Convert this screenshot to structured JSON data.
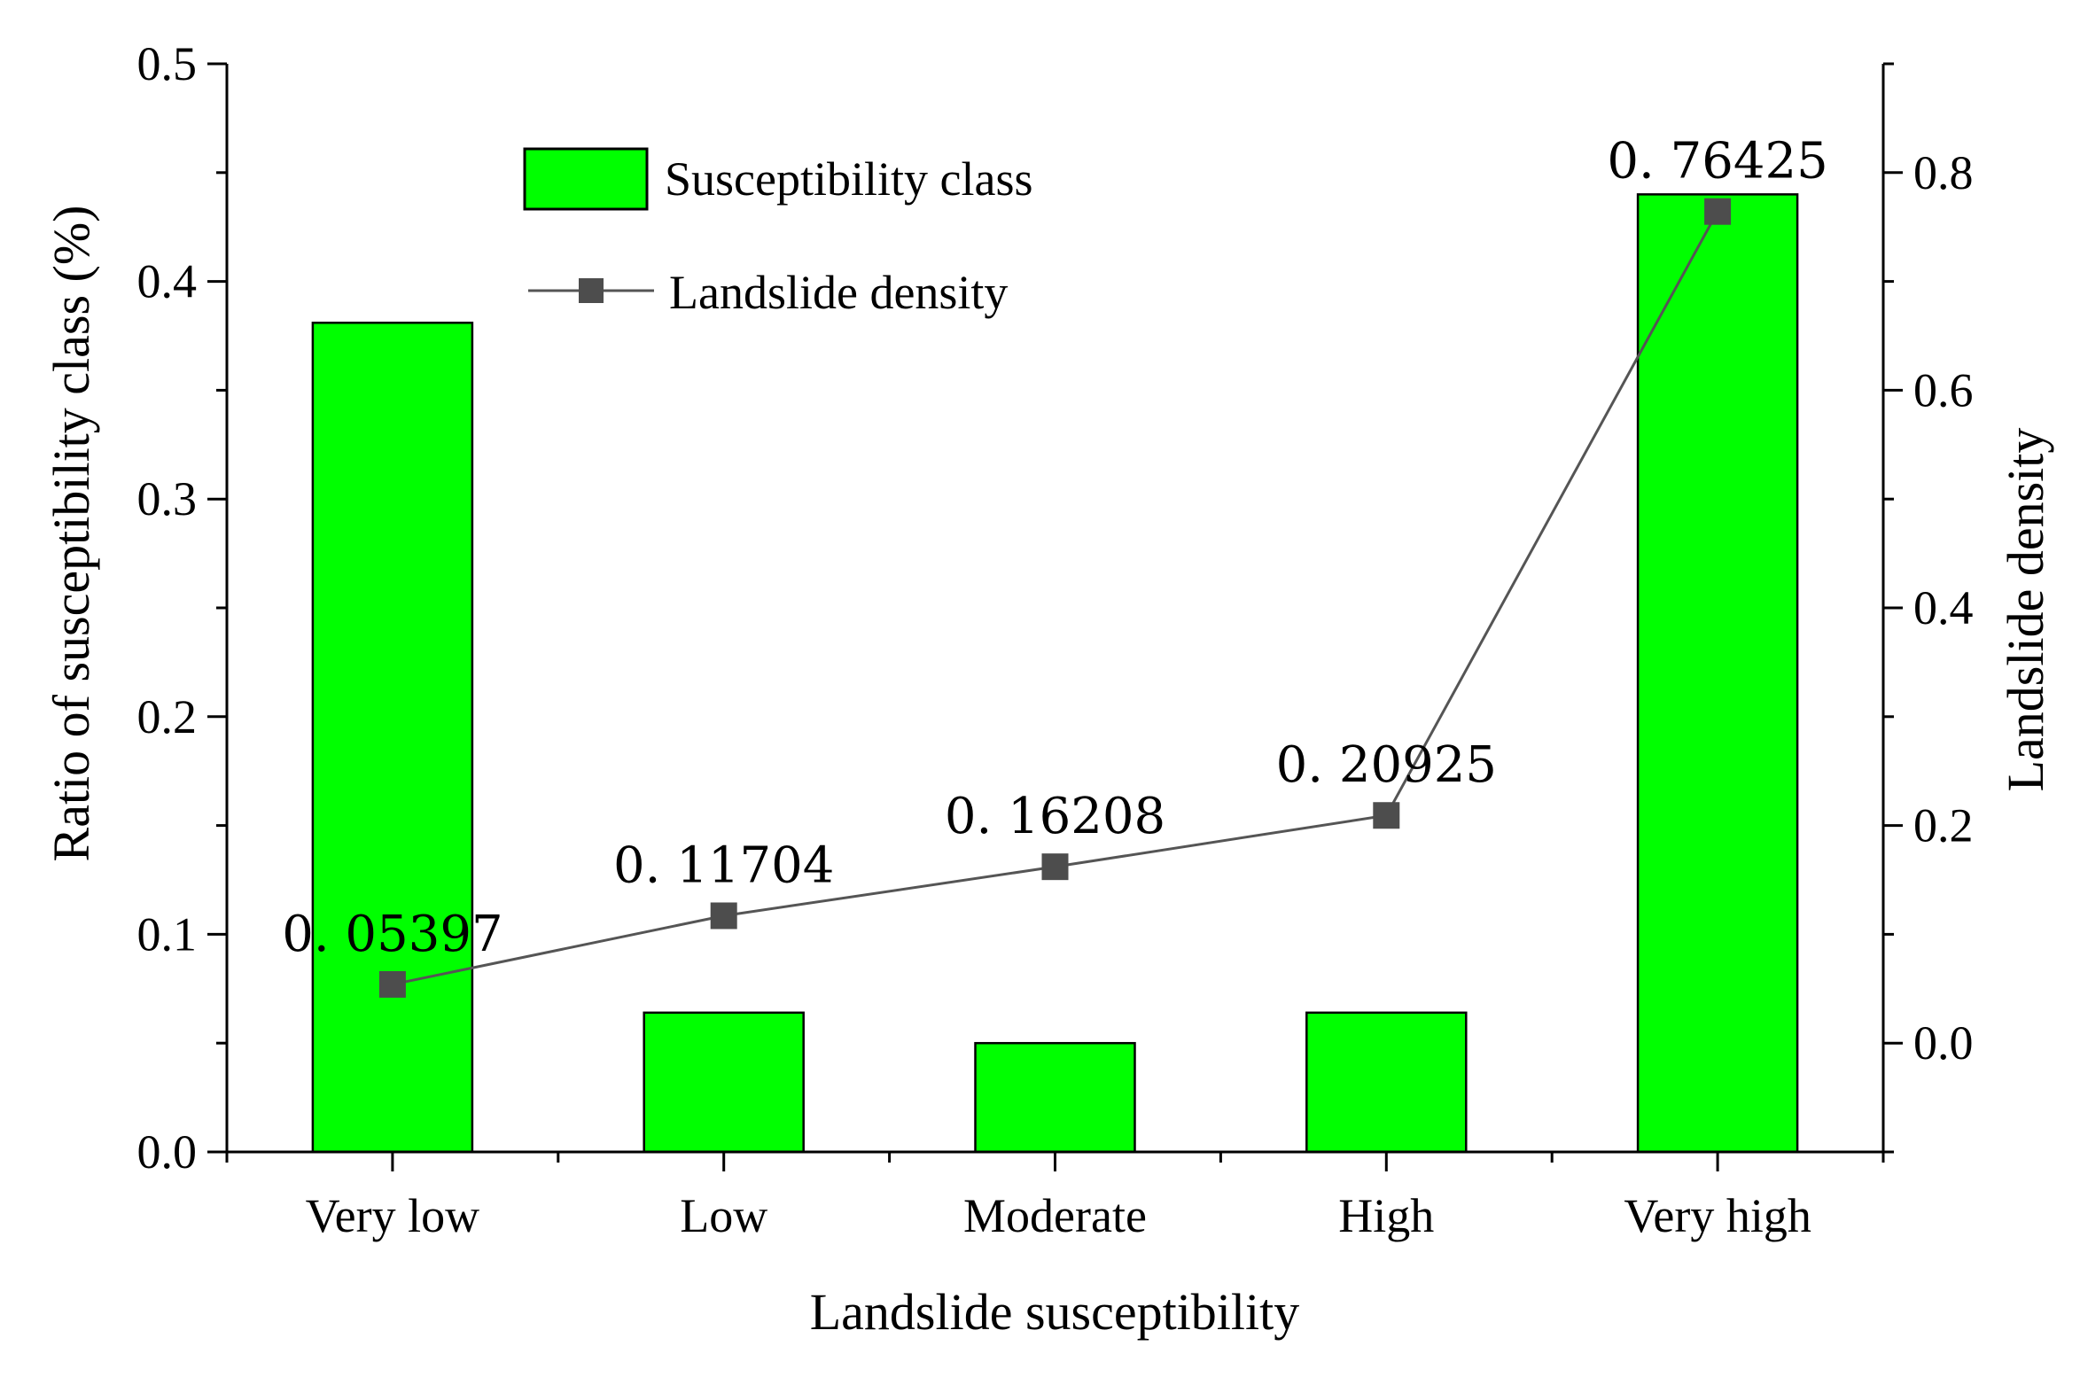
{
  "chart_data": {
    "type": "bar+line",
    "categories": [
      "Very low",
      "Low",
      "Moderate",
      "High",
      "Very high"
    ],
    "series": [
      {
        "name": "Susceptibility class",
        "kind": "bar",
        "axis": "left",
        "color": "#00ff00",
        "values": [
          0.381,
          0.064,
          0.05,
          0.064,
          0.44
        ]
      },
      {
        "name": "Landslide density",
        "kind": "line",
        "axis": "right",
        "color": "#555555",
        "values": [
          0.05397,
          0.11704,
          0.16208,
          0.20925,
          0.76425
        ],
        "labels": [
          "0. 05397",
          "0. 11704",
          "0. 16208",
          "0. 20925",
          "0. 76425"
        ]
      }
    ],
    "xlabel": "Landslide susceptibility",
    "ylabel": "Ratio of susceptibility class (%)",
    "y2label": "Landslide density",
    "ylim": [
      0,
      0.5
    ],
    "y2lim": [
      -0.1,
      0.9
    ],
    "yticks": [
      "0.0",
      "0.1",
      "0.2",
      "0.3",
      "0.4",
      "0.5"
    ],
    "y2ticks": [
      "0.0",
      "0.2",
      "0.4",
      "0.6",
      "0.8"
    ],
    "legend_position": "top-left"
  }
}
